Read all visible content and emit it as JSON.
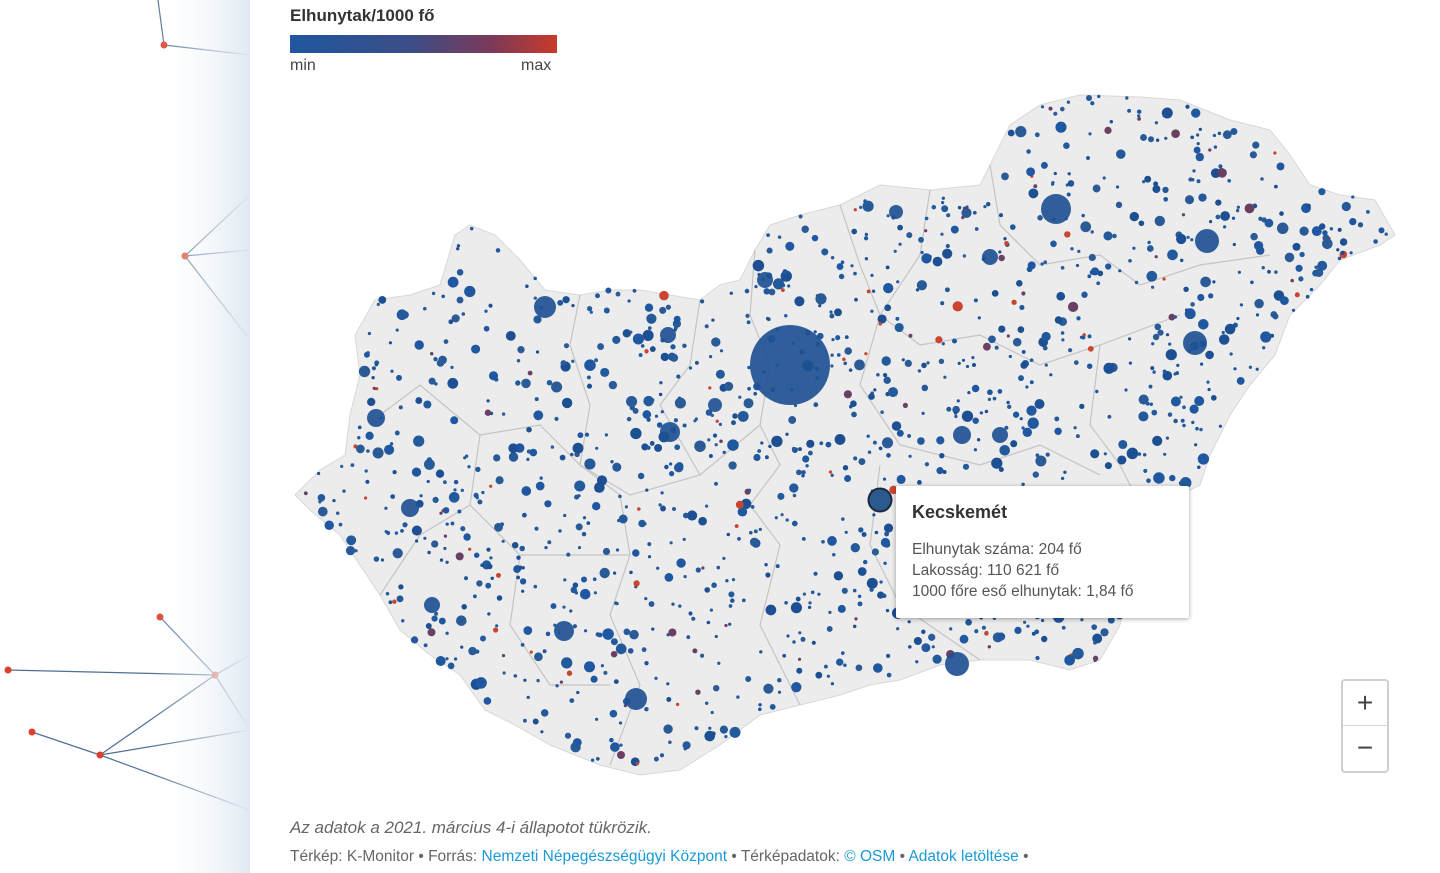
{
  "legend": {
    "title": "Elhunytak/1000 fő",
    "min": "min",
    "max": "max"
  },
  "colors": {
    "low": "#1f57a0",
    "high": "#c93a2a",
    "land": "#ececec",
    "border": "#b9b9b9"
  },
  "tooltip": {
    "city": "Kecskemét",
    "deaths": "Elhunytak száma: 204 fő",
    "population": "Lakosság: 110 621 fő",
    "per1000": "1000 főre eső elhunytak: 1,84 fő"
  },
  "zoom": {
    "in": "+",
    "out": "−"
  },
  "footer": {
    "note": "Az adatok a 2021. március 4-i állapotot tükrözik.",
    "map_by": "Térkép: K-Monitor",
    "source_label": "Forrás:",
    "source": "Nemzeti Népegészségügyi Központ",
    "mapdata_label": "Térképadatok:",
    "osm": "© OSM",
    "download": "Adatok letöltése",
    "sep": " • "
  }
}
